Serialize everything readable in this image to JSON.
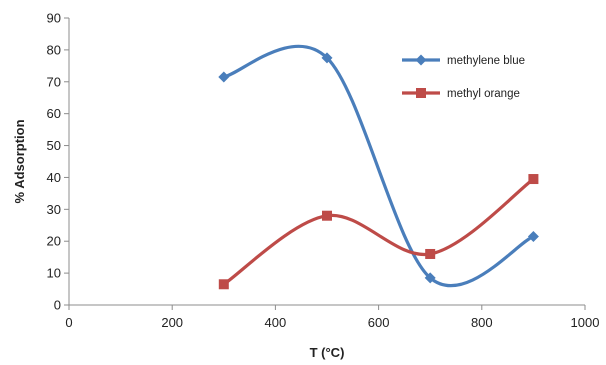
{
  "chart_data": {
    "type": "scatter",
    "xlabel": "T (°C)",
    "ylabel": "% Adsorption",
    "xlim": [
      0,
      1000
    ],
    "ylim": [
      0,
      90
    ],
    "xticks": [
      "0",
      "200",
      "400",
      "600",
      "800",
      "1000"
    ],
    "yticks": [
      "0",
      "10",
      "20",
      "30",
      "40",
      "50",
      "60",
      "70",
      "80",
      "90"
    ],
    "grid": false,
    "legend_position": "top-right",
    "smooth_lines": true,
    "series": [
      {
        "name": "methylene blue",
        "color": "#4a7ebb",
        "marker": "diamond",
        "x": [
          300,
          500,
          700,
          900
        ],
        "y": [
          71.5,
          77.5,
          8.5,
          21.5
        ]
      },
      {
        "name": "methyl orange",
        "color": "#be4b48",
        "marker": "square",
        "x": [
          300,
          500,
          700,
          900
        ],
        "y": [
          6.5,
          28,
          16,
          39.5
        ]
      }
    ]
  }
}
